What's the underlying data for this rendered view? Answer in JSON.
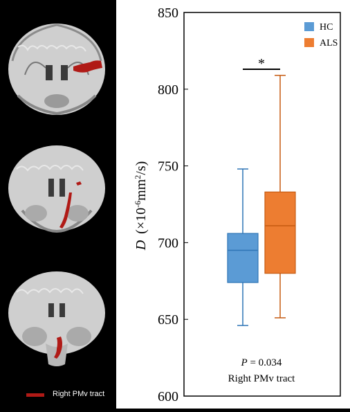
{
  "legend_caption": "Right PMv tract",
  "colors": {
    "tract": "#b01a16",
    "hc": "#5b9bd5",
    "hc_edge": "#2e75b6",
    "als": "#ed7d31",
    "als_edge": "#c55a11",
    "background_left": "#000000",
    "background_chart": "#ffffff"
  },
  "chart_data": {
    "type": "boxplot",
    "ylabel_main": "D",
    "ylabel_rest": "(×10",
    "ylabel_sup": "-6",
    "ylabel_unit": "mm",
    "ylabel_sup2": "2",
    "ylabel_end": "/s)",
    "ylim": [
      600,
      850
    ],
    "yticks": [
      600,
      650,
      700,
      750,
      800,
      850
    ],
    "legend_placement": "top-right",
    "series": [
      {
        "name": "HC",
        "min": 646,
        "q1": 674,
        "median": 695,
        "q3": 706,
        "max": 748
      },
      {
        "name": "ALS",
        "min": 651,
        "q1": 680,
        "median": 711,
        "q3": 733,
        "max": 809
      }
    ],
    "significance_mark": "*",
    "annotation_p": "P",
    "annotation_p_value": " = 0.034",
    "annotation_tract": "Right PMv tract"
  }
}
